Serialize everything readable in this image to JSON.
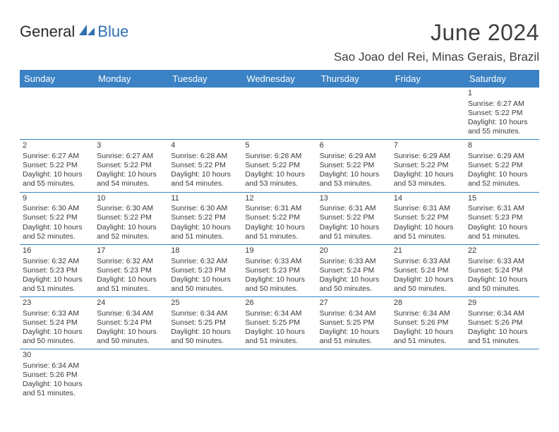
{
  "brand": {
    "part1": "General",
    "part2": "Blue"
  },
  "title": "June 2024",
  "location": "Sao Joao del Rei, Minas Gerais, Brazil",
  "colors": {
    "header_bg": "#3b82c4",
    "header_text": "#ffffff",
    "rule": "#3b82c4",
    "text": "#3a3a3a",
    "brand_blue": "#2f6fb0"
  },
  "weekdays": [
    "Sunday",
    "Monday",
    "Tuesday",
    "Wednesday",
    "Thursday",
    "Friday",
    "Saturday"
  ],
  "cells": [
    null,
    null,
    null,
    null,
    null,
    null,
    {
      "n": "1",
      "r": "6:27 AM",
      "s": "5:22 PM",
      "d": "10 hours and 55 minutes."
    },
    {
      "n": "2",
      "r": "6:27 AM",
      "s": "5:22 PM",
      "d": "10 hours and 55 minutes."
    },
    {
      "n": "3",
      "r": "6:27 AM",
      "s": "5:22 PM",
      "d": "10 hours and 54 minutes."
    },
    {
      "n": "4",
      "r": "6:28 AM",
      "s": "5:22 PM",
      "d": "10 hours and 54 minutes."
    },
    {
      "n": "5",
      "r": "6:28 AM",
      "s": "5:22 PM",
      "d": "10 hours and 53 minutes."
    },
    {
      "n": "6",
      "r": "6:29 AM",
      "s": "5:22 PM",
      "d": "10 hours and 53 minutes."
    },
    {
      "n": "7",
      "r": "6:29 AM",
      "s": "5:22 PM",
      "d": "10 hours and 53 minutes."
    },
    {
      "n": "8",
      "r": "6:29 AM",
      "s": "5:22 PM",
      "d": "10 hours and 52 minutes."
    },
    {
      "n": "9",
      "r": "6:30 AM",
      "s": "5:22 PM",
      "d": "10 hours and 52 minutes."
    },
    {
      "n": "10",
      "r": "6:30 AM",
      "s": "5:22 PM",
      "d": "10 hours and 52 minutes."
    },
    {
      "n": "11",
      "r": "6:30 AM",
      "s": "5:22 PM",
      "d": "10 hours and 51 minutes."
    },
    {
      "n": "12",
      "r": "6:31 AM",
      "s": "5:22 PM",
      "d": "10 hours and 51 minutes."
    },
    {
      "n": "13",
      "r": "6:31 AM",
      "s": "5:22 PM",
      "d": "10 hours and 51 minutes."
    },
    {
      "n": "14",
      "r": "6:31 AM",
      "s": "5:22 PM",
      "d": "10 hours and 51 minutes."
    },
    {
      "n": "15",
      "r": "6:31 AM",
      "s": "5:23 PM",
      "d": "10 hours and 51 minutes."
    },
    {
      "n": "16",
      "r": "6:32 AM",
      "s": "5:23 PM",
      "d": "10 hours and 51 minutes."
    },
    {
      "n": "17",
      "r": "6:32 AM",
      "s": "5:23 PM",
      "d": "10 hours and 51 minutes."
    },
    {
      "n": "18",
      "r": "6:32 AM",
      "s": "5:23 PM",
      "d": "10 hours and 50 minutes."
    },
    {
      "n": "19",
      "r": "6:33 AM",
      "s": "5:23 PM",
      "d": "10 hours and 50 minutes."
    },
    {
      "n": "20",
      "r": "6:33 AM",
      "s": "5:24 PM",
      "d": "10 hours and 50 minutes."
    },
    {
      "n": "21",
      "r": "6:33 AM",
      "s": "5:24 PM",
      "d": "10 hours and 50 minutes."
    },
    {
      "n": "22",
      "r": "6:33 AM",
      "s": "5:24 PM",
      "d": "10 hours and 50 minutes."
    },
    {
      "n": "23",
      "r": "6:33 AM",
      "s": "5:24 PM",
      "d": "10 hours and 50 minutes."
    },
    {
      "n": "24",
      "r": "6:34 AM",
      "s": "5:24 PM",
      "d": "10 hours and 50 minutes."
    },
    {
      "n": "25",
      "r": "6:34 AM",
      "s": "5:25 PM",
      "d": "10 hours and 50 minutes."
    },
    {
      "n": "26",
      "r": "6:34 AM",
      "s": "5:25 PM",
      "d": "10 hours and 51 minutes."
    },
    {
      "n": "27",
      "r": "6:34 AM",
      "s": "5:25 PM",
      "d": "10 hours and 51 minutes."
    },
    {
      "n": "28",
      "r": "6:34 AM",
      "s": "5:26 PM",
      "d": "10 hours and 51 minutes."
    },
    {
      "n": "29",
      "r": "6:34 AM",
      "s": "5:26 PM",
      "d": "10 hours and 51 minutes."
    },
    {
      "n": "30",
      "r": "6:34 AM",
      "s": "5:26 PM",
      "d": "10 hours and 51 minutes."
    },
    null,
    null,
    null,
    null,
    null,
    null
  ],
  "labels": {
    "sunrise": "Sunrise: ",
    "sunset": "Sunset: ",
    "daylight": "Daylight: "
  }
}
